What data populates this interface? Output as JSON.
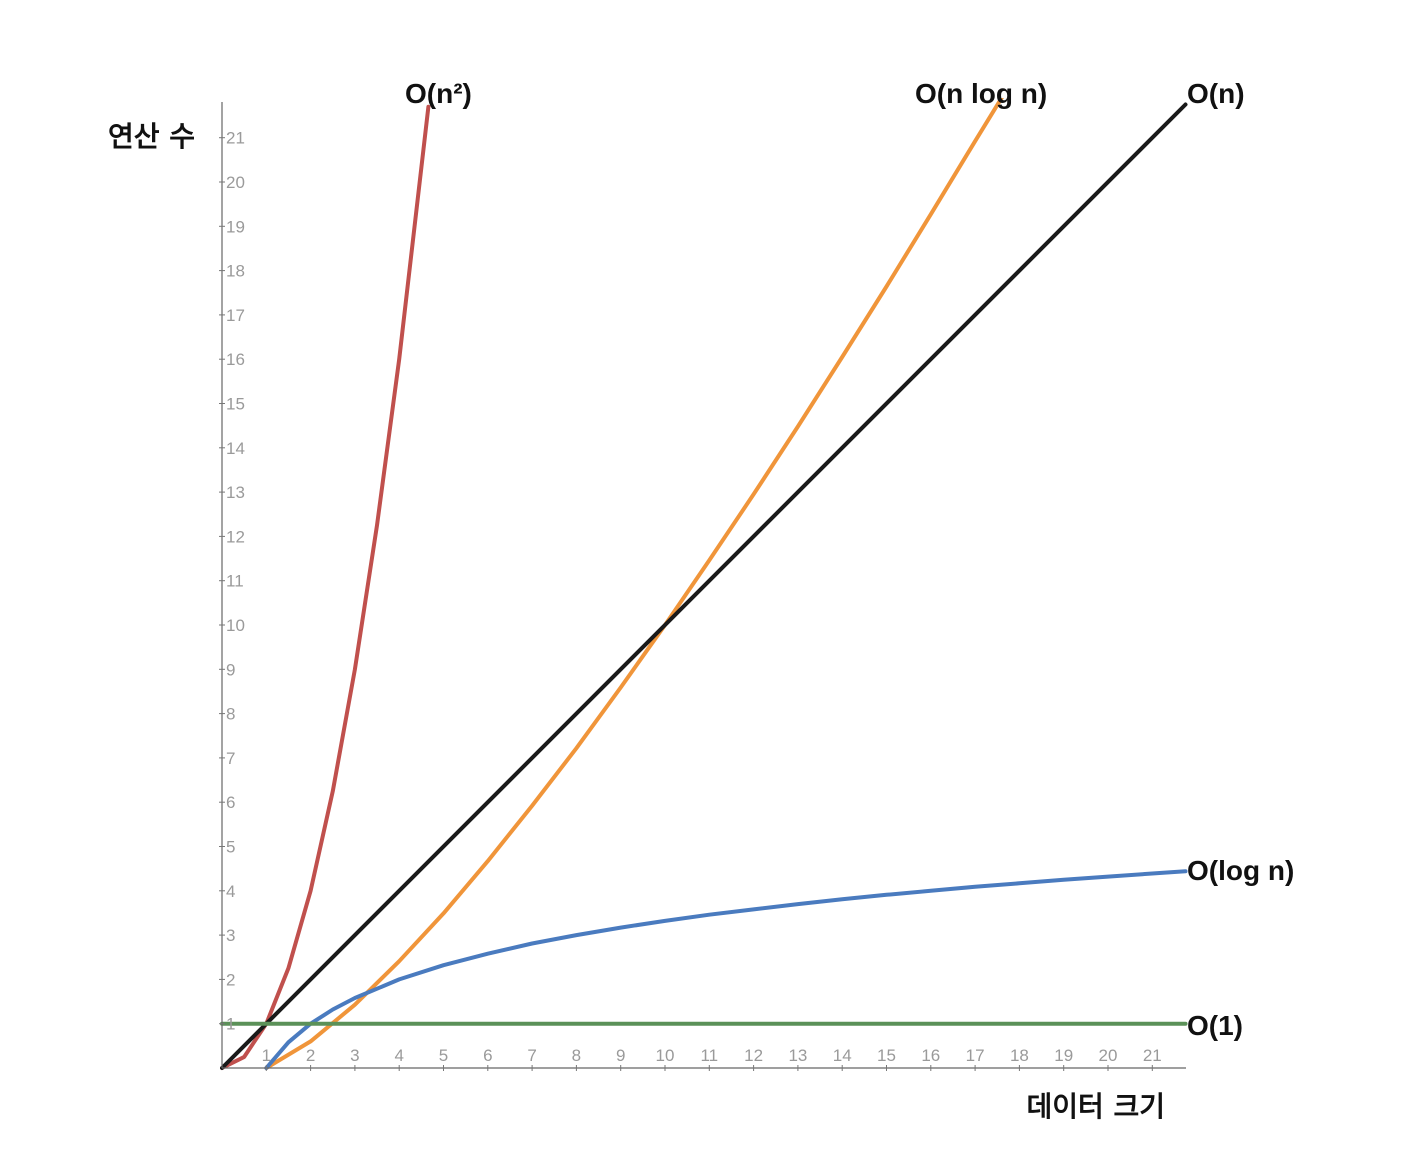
{
  "chart_data": {
    "type": "line",
    "xlabel": "데이터 크기",
    "ylabel": "연산 수",
    "xlim": [
      0,
      21.75
    ],
    "ylim": [
      0,
      21.75
    ],
    "x_ticks": [
      "1",
      "2",
      "3",
      "4",
      "5",
      "6",
      "7",
      "8",
      "9",
      "10",
      "11",
      "12",
      "13",
      "14",
      "15",
      "16",
      "17",
      "18",
      "19",
      "20",
      "21"
    ],
    "y_ticks": [
      "1",
      "2",
      "3",
      "4",
      "5",
      "6",
      "7",
      "8",
      "9",
      "10",
      "11",
      "12",
      "13",
      "14",
      "15",
      "16",
      "17",
      "18",
      "19",
      "20",
      "21"
    ],
    "grid": false,
    "legend": "inline labels at line ends",
    "series": [
      {
        "name": "O(n²)",
        "color": "#c0504d",
        "x": [
          0,
          0.5,
          1,
          1.5,
          2,
          2.5,
          3,
          3.5,
          4,
          4.66
        ],
        "y": [
          0,
          0.25,
          1,
          2.25,
          4,
          6.25,
          9,
          12.25,
          16,
          21.7
        ]
      },
      {
        "name": "O(n log n)",
        "color": "#f0953a",
        "x": [
          1,
          2,
          3,
          4,
          5,
          6,
          7,
          8,
          9,
          10,
          11,
          12,
          13,
          14,
          15,
          16,
          17,
          17.6
        ],
        "y": [
          0,
          0.6,
          1.43,
          2.41,
          3.49,
          4.67,
          5.92,
          7.22,
          8.59,
          10,
          11.46,
          12.95,
          14.48,
          16.05,
          17.64,
          19.27,
          20.92,
          21.9
        ]
      },
      {
        "name": "O(n)",
        "color": "#1a1a1a",
        "x": [
          0,
          21.75
        ],
        "y": [
          0,
          21.75
        ]
      },
      {
        "name": "O(log n)",
        "color": "#4a7bbf",
        "x": [
          1,
          1.5,
          2,
          2.5,
          3,
          4,
          5,
          6,
          7,
          8,
          9,
          10,
          11,
          12,
          13,
          14,
          15,
          16,
          17,
          18,
          19,
          20,
          21,
          21.75
        ],
        "y": [
          0,
          0.58,
          1,
          1.32,
          1.58,
          2,
          2.32,
          2.58,
          2.81,
          3,
          3.17,
          3.32,
          3.46,
          3.58,
          3.7,
          3.81,
          3.91,
          4,
          4.09,
          4.17,
          4.25,
          4.32,
          4.39,
          4.44
        ]
      },
      {
        "name": "O(1)",
        "color": "#5b9158",
        "x": [
          0,
          21.75
        ],
        "y": [
          1,
          1
        ]
      }
    ]
  }
}
